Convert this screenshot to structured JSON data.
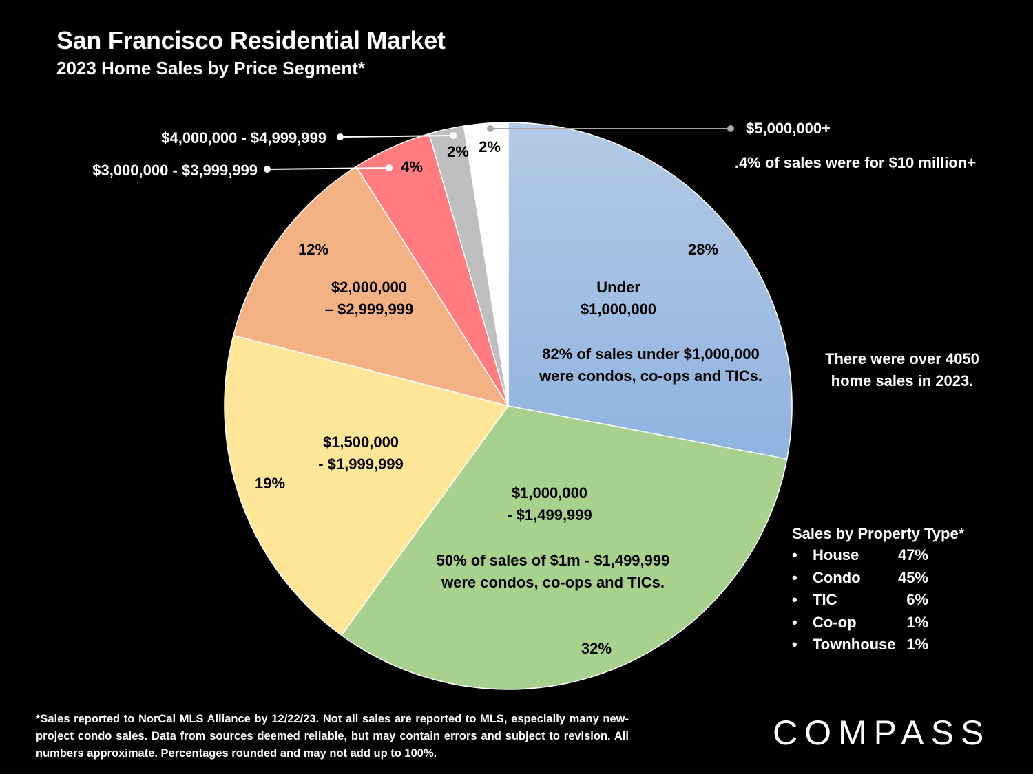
{
  "header": {
    "title": "San Francisco Residential Market",
    "subtitle": "2023 Home Sales by Price Segment*"
  },
  "chart_data": {
    "type": "pie",
    "title": "San Francisco Residential Market",
    "subtitle": "2023 Home Sales by Price Segment*",
    "slices": [
      {
        "name": "Under $1,000,000",
        "label_lines": [
          "Under",
          "$1,000,000"
        ],
        "value": 28,
        "pct_label": "28%",
        "color": "#9bbbe3",
        "note_lines": [
          "82% of sales under $1,000,000",
          "were condos, co-ops and TICs."
        ]
      },
      {
        "name": "$1,000,000 - $1,499,999",
        "label_lines": [
          "$1,000,000",
          "- $1,499,999"
        ],
        "value": 32,
        "pct_label": "32%",
        "color": "#a9d18e",
        "note_lines": [
          "50% of sales of $1m - $1,499,999",
          "were condos, co-ops and TICs."
        ]
      },
      {
        "name": "$1,500,000 - $1,999,999",
        "label_lines": [
          "$1,500,000",
          "- $1,999,999"
        ],
        "value": 19,
        "pct_label": "19%",
        "color": "#ffe699"
      },
      {
        "name": "$2,000,000 – $2,999,999",
        "label_lines": [
          "$2,000,000",
          "– $2,999,999"
        ],
        "value": 12,
        "pct_label": "12%",
        "color": "#f4b183"
      },
      {
        "name": "$3,000,000 - $3,999,999",
        "label_lines": [
          "$3,000,000 - $3,999,999"
        ],
        "value": 4.5,
        "pct_label": "4%",
        "color": "#ff7c80",
        "callout": true
      },
      {
        "name": "$4,000,000 - $4,999,999",
        "label_lines": [
          "$4,000,000 - $4,999,999"
        ],
        "value": 2,
        "pct_label": "2%",
        "color": "#bfbfbf",
        "callout": true
      },
      {
        "name": "$5,000,000+",
        "label_lines": [
          "$5,000,000+"
        ],
        "value": 2.5,
        "pct_label": "2%",
        "color": "#ffffff",
        "callout": true
      }
    ]
  },
  "notes": {
    "ten_million": ".4% of sales were for $10 million+",
    "total_sales": [
      "There were over 4050",
      "home sales in 2023."
    ]
  },
  "property_types": {
    "title": "Sales by Property Type*",
    "items": [
      {
        "bullet": "•",
        "name": "House",
        "value": "47%"
      },
      {
        "bullet": "•",
        "name": "Condo",
        "value": "45%"
      },
      {
        "bullet": "•",
        "name": "TIC",
        "value": "6%"
      },
      {
        "bullet": "•",
        "name": "Co-op",
        "value": "1%"
      },
      {
        "bullet": "•",
        "name": "Townhouse",
        "value": "1%"
      }
    ]
  },
  "footnote": "*Sales reported to NorCal MLS Alliance by 12/22/23. Not all sales are reported to MLS, especially many new-project condo sales. Data from sources deemed reliable, but may contain errors and subject to revision. All numbers approximate. Percentages rounded and may not add up to 100%.",
  "brand": {
    "logo_text": "COMPASS"
  },
  "colors": {
    "background": "#000000",
    "text": "#ffffff",
    "leader_light": "#a6a6a6"
  }
}
